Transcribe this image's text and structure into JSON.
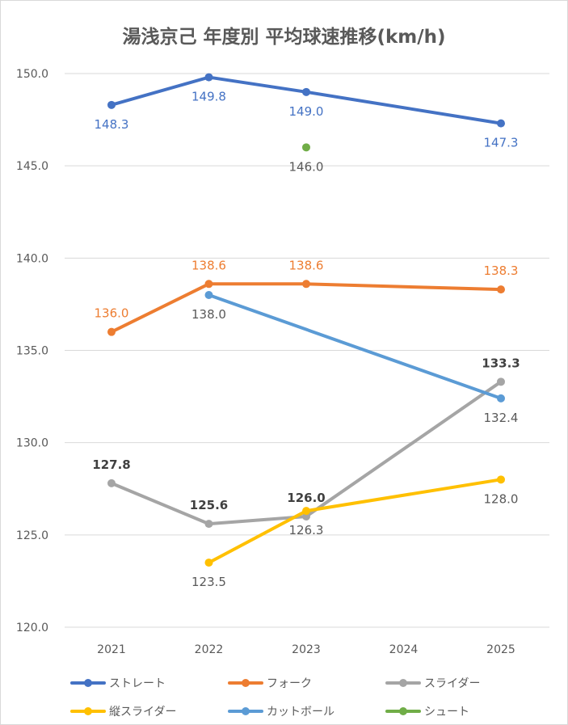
{
  "chart_data": {
    "type": "line",
    "title": "湯浅京己 年度別 平均球速推移(km/h)",
    "categories": [
      "2021",
      "2022",
      "2023",
      "2024",
      "2025"
    ],
    "ylim": [
      120,
      150
    ],
    "yticks": [
      "120.0",
      "125.0",
      "130.0",
      "135.0",
      "140.0",
      "145.0",
      "150.0"
    ],
    "grid": true,
    "legend_position": "bottom",
    "series": [
      {
        "name": "ストレート",
        "color": "#4472c4",
        "label_color": "#4472c4",
        "values": [
          148.3,
          149.8,
          149.0,
          null,
          147.3
        ],
        "labels": [
          "148.3",
          "149.8",
          "149.0",
          null,
          "147.3"
        ]
      },
      {
        "name": "フォーク",
        "color": "#ed7d31",
        "label_color": "#ed7d31",
        "values": [
          136.0,
          138.6,
          138.6,
          null,
          138.3
        ],
        "labels": [
          "136.0",
          "138.6",
          "138.6",
          null,
          "138.3"
        ]
      },
      {
        "name": "スライダー",
        "color": "#a5a5a5",
        "label_color": "#404040",
        "values": [
          127.8,
          125.6,
          126.0,
          null,
          133.3
        ],
        "labels": [
          "127.8",
          "125.6",
          "126.0",
          null,
          "133.3"
        ]
      },
      {
        "name": "縦スライダー",
        "color": "#ffc000",
        "label_color": "#595959",
        "values": [
          null,
          123.5,
          126.3,
          null,
          128.0
        ],
        "labels": [
          null,
          "123.5",
          "126.3",
          null,
          "128.0"
        ]
      },
      {
        "name": "カットボール",
        "color": "#5b9bd5",
        "label_color": "#595959",
        "values": [
          null,
          138.0,
          null,
          null,
          132.4
        ],
        "labels": [
          null,
          "138.0",
          null,
          null,
          "132.4"
        ]
      },
      {
        "name": "シュート",
        "color": "#70ad47",
        "label_color": "#595959",
        "values": [
          null,
          null,
          146.0,
          null,
          null
        ],
        "labels": [
          null,
          null,
          "146.0",
          null,
          null
        ]
      }
    ]
  }
}
